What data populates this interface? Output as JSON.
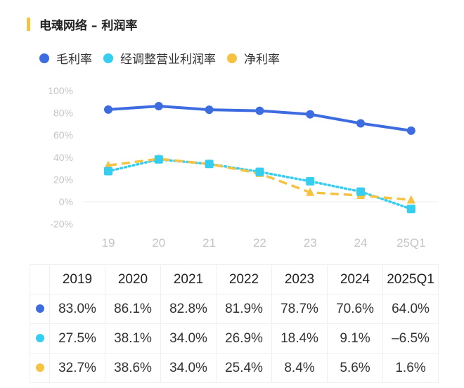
{
  "title": "电魂网络 – 利润率",
  "chart_data": {
    "type": "line",
    "title": "电魂网络 – 利润率",
    "categories": [
      "19",
      "20",
      "21",
      "22",
      "23",
      "24",
      "25Q1"
    ],
    "yticks": [
      "100%",
      "80%",
      "60%",
      "40%",
      "20%",
      "0%",
      "-20%"
    ],
    "ylim": [
      -20,
      100
    ],
    "grid": false,
    "legend_position": "top-left",
    "series": [
      {
        "name": "毛利率",
        "color": "#3d6be0",
        "marker": "circle",
        "style": "solid",
        "values": [
          83.0,
          86.1,
          82.8,
          81.9,
          78.7,
          70.6,
          64.0
        ]
      },
      {
        "name": "经调整营业利润率",
        "color": "#35cdf0",
        "marker": "square",
        "style": "dotted",
        "values": [
          27.5,
          38.1,
          34.0,
          26.9,
          18.4,
          9.1,
          -6.5
        ]
      },
      {
        "name": "净利率",
        "color": "#f5c242",
        "marker": "triangle",
        "style": "dashed",
        "values": [
          32.7,
          38.6,
          34.0,
          25.4,
          8.4,
          5.6,
          1.6
        ]
      }
    ]
  },
  "table": {
    "headers": [
      "2019",
      "2020",
      "2021",
      "2022",
      "2023",
      "2024",
      "2025Q1"
    ],
    "rows": [
      [
        "83.0%",
        "86.1%",
        "82.8%",
        "81.9%",
        "78.7%",
        "70.6%",
        "64.0%"
      ],
      [
        "27.5%",
        "38.1%",
        "34.0%",
        "26.9%",
        "18.4%",
        "9.1%",
        "–6.5%"
      ],
      [
        "32.7%",
        "38.6%",
        "34.0%",
        "25.4%",
        "8.4%",
        "5.6%",
        "1.6%"
      ]
    ]
  }
}
